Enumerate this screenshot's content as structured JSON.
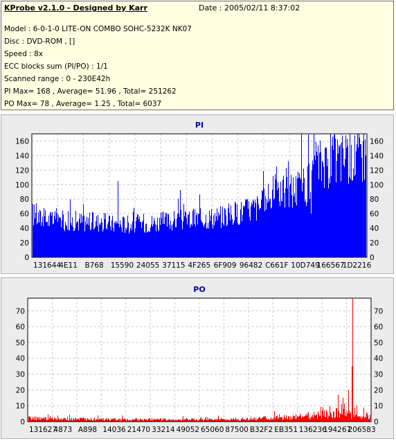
{
  "header": {
    "title": "KProbe v2.1.0 - Designed by Karr",
    "date": "Date : 2005/02/11 8:37:02",
    "lines": [
      "Model : 6-0-1-0 LITE-ON COMBO SOHC-5232K NK07",
      "Disc : DVD-ROM ,  []",
      "Speed : 8x",
      "ECC blocks sum (PI/PO) : 1/1",
      "Scanned range : 0 - 230E42h",
      "PI Max= 168 , Average= 51.96 , Total= 251262",
      "PO Max= 78 , Average= 1.25 , Total= 6037"
    ]
  },
  "chart_data": [
    {
      "type": "bar",
      "title": "PI",
      "ylim": [
        0,
        170
      ],
      "yticks": [
        0,
        20,
        40,
        60,
        80,
        100,
        120,
        140,
        160
      ],
      "xtick_labels": [
        "131644",
        "4E11",
        "B768",
        "15590",
        "24055",
        "37115",
        "4F265",
        "6F909",
        "96482",
        "C661F",
        "10D749",
        "166567",
        "1D2216"
      ],
      "grid": true,
      "color": "#0000ff",
      "profile": [
        [
          0,
          58
        ],
        [
          0.02,
          52
        ],
        [
          0.05,
          50
        ],
        [
          0.1,
          49
        ],
        [
          0.2,
          47
        ],
        [
          0.25,
          44
        ],
        [
          0.3,
          45
        ],
        [
          0.35,
          46
        ],
        [
          0.4,
          48
        ],
        [
          0.45,
          50
        ],
        [
          0.5,
          52
        ],
        [
          0.55,
          54
        ],
        [
          0.6,
          58
        ],
        [
          0.65,
          64
        ],
        [
          0.68,
          68
        ],
        [
          0.7,
          74
        ],
        [
          0.72,
          82
        ],
        [
          0.75,
          86
        ],
        [
          0.78,
          90
        ],
        [
          0.8,
          92
        ],
        [
          0.82,
          95
        ],
        [
          0.84,
          100
        ],
        [
          0.85,
          125
        ],
        [
          0.88,
          128
        ],
        [
          0.9,
          130
        ],
        [
          0.93,
          135
        ],
        [
          0.96,
          138
        ],
        [
          1,
          140
        ]
      ],
      "spikes": [
        [
          0.255,
          105
        ],
        [
          0.72,
          112
        ],
        [
          0.73,
          125
        ],
        [
          0.76,
          123
        ],
        [
          0.795,
          118
        ],
        [
          0.8,
          110
        ],
        [
          0.835,
          60
        ],
        [
          0.875,
          150
        ],
        [
          0.9,
          148
        ],
        [
          0.93,
          150
        ],
        [
          0.955,
          155
        ],
        [
          0.965,
          168
        ],
        [
          0.98,
          165
        ],
        [
          0.99,
          160
        ]
      ]
    },
    {
      "type": "bar",
      "title": "PO",
      "ylim": [
        0,
        78
      ],
      "yticks": [
        0,
        10,
        20,
        30,
        40,
        50,
        60,
        70
      ],
      "xtick_labels": [
        "131627",
        "4873",
        "A898",
        "14036",
        "21470",
        "33214",
        "49052",
        "65060",
        "87500",
        "B32F2",
        "EB351",
        "136236",
        "194267",
        "206583"
      ],
      "grid": true,
      "color": "#ff0000",
      "profile": [
        [
          0,
          2
        ],
        [
          0.1,
          1.5
        ],
        [
          0.3,
          1.2
        ],
        [
          0.5,
          1.2
        ],
        [
          0.6,
          1.4
        ],
        [
          0.7,
          2
        ],
        [
          0.75,
          2.5
        ],
        [
          0.8,
          3
        ],
        [
          0.85,
          4
        ],
        [
          0.88,
          5
        ],
        [
          0.9,
          5
        ],
        [
          0.95,
          4
        ],
        [
          1,
          3
        ]
      ],
      "spikes": [
        [
          0.86,
          9
        ],
        [
          0.88,
          10
        ],
        [
          0.905,
          17
        ],
        [
          0.915,
          11
        ],
        [
          0.92,
          15
        ],
        [
          0.935,
          20
        ],
        [
          0.945,
          35
        ],
        [
          0.948,
          78
        ],
        [
          0.96,
          10
        ],
        [
          0.98,
          9
        ]
      ]
    }
  ]
}
